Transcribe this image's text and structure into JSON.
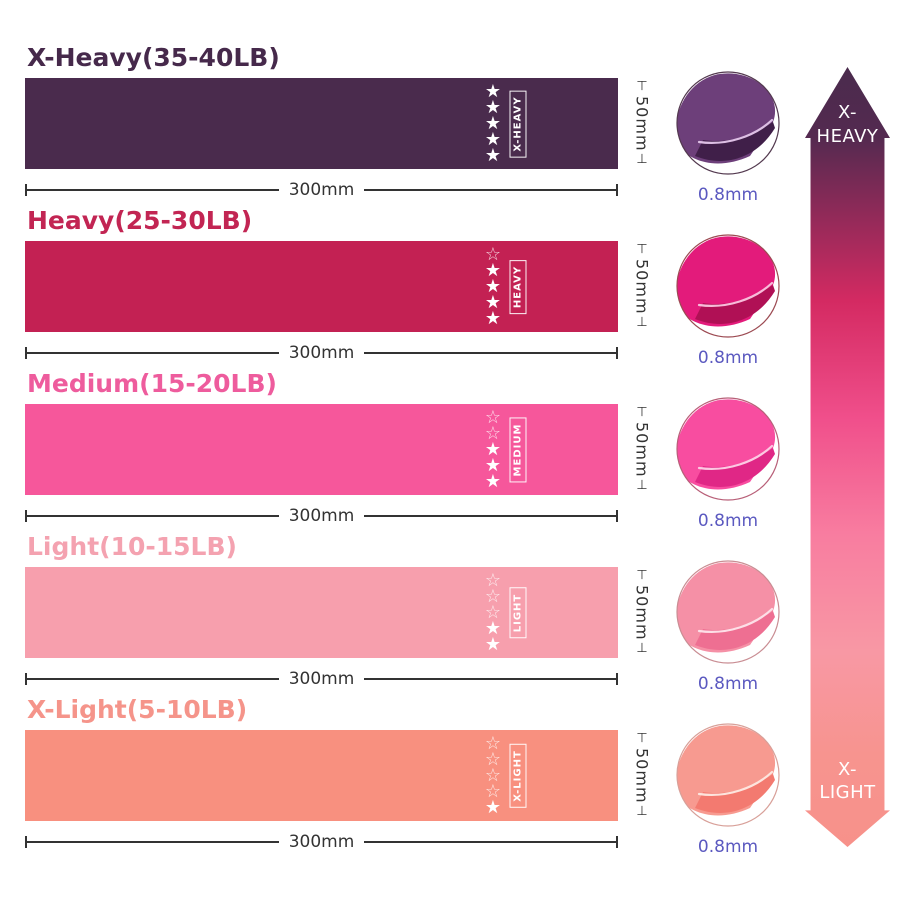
{
  "page": {
    "background": "#ffffff"
  },
  "dimension_color": "#333333",
  "thickness_color": "#5b59c0",
  "rows": [
    {
      "title": "X-Heavy(35-40LB)",
      "band_label": "X-HEAVY",
      "stars_filled": 5,
      "stars_outline": 0,
      "width_label": "300mm",
      "height_label": "50mm",
      "thickness_label": "0.8mm",
      "colors": {
        "band": "#4a2b4d",
        "title": "#46294b",
        "fold_main": "#6d3f7a",
        "fold_dark": "#401f49",
        "fold_edge": "#ddbfe4",
        "circle_border": "#53394f"
      }
    },
    {
      "title": "Heavy(25-30LB)",
      "band_label": "HEAVY",
      "stars_filled": 4,
      "stars_outline": 1,
      "width_label": "300mm",
      "height_label": "50mm",
      "thickness_label": "0.8mm",
      "colors": {
        "band": "#c32153",
        "title": "#c22553",
        "fold_main": "#e31b7b",
        "fold_dark": "#b01055",
        "fold_edge": "#f7bcd9",
        "circle_border": "#9c4a52"
      }
    },
    {
      "title": "Medium(15-20LB)",
      "band_label": "MEDIUM",
      "stars_filled": 3,
      "stars_outline": 2,
      "width_label": "300mm",
      "height_label": "50mm",
      "thickness_label": "0.8mm",
      "colors": {
        "band": "#f6579b",
        "title": "#ee5c9d",
        "fold_main": "#f84da0",
        "fold_dark": "#e02786",
        "fold_edge": "#fcc9e2",
        "circle_border": "#b85f78"
      }
    },
    {
      "title": "Light(10-15LB)",
      "band_label": "LIGHT",
      "stars_filled": 2,
      "stars_outline": 3,
      "width_label": "300mm",
      "height_label": "50mm",
      "thickness_label": "0.8mm",
      "colors": {
        "band": "#f79fad",
        "title": "#f4a2b0",
        "fold_main": "#f590a6",
        "fold_dark": "#ee6f92",
        "fold_edge": "#fddfe7",
        "circle_border": "#c98d93"
      }
    },
    {
      "title": "X-Light(5-10LB)",
      "band_label": "X-LIGHT",
      "stars_filled": 1,
      "stars_outline": 4,
      "width_label": "300mm",
      "height_label": "50mm",
      "thickness_label": "0.8mm",
      "colors": {
        "band": "#f8907f",
        "title": "#f5948a",
        "fold_main": "#f79a90",
        "fold_dark": "#f37a70",
        "fold_edge": "#fde4dd",
        "circle_border": "#d8a099"
      }
    }
  ],
  "arrow": {
    "top_label_line1": "X-",
    "top_label_line2": "HEAVY",
    "bottom_label_line1": "X-",
    "bottom_label_line2": "LIGHT",
    "gradient": [
      "#4a2b4d",
      "#542a50",
      "#d42a62",
      "#f04f8b",
      "#f87da0",
      "#f898a4",
      "#f7948f",
      "#f7918a"
    ]
  },
  "star_glyphs": {
    "filled": "★",
    "outline": "☆"
  },
  "dim_tick_glyphs": {
    "top": "⊤",
    "bottom": "⊥"
  }
}
